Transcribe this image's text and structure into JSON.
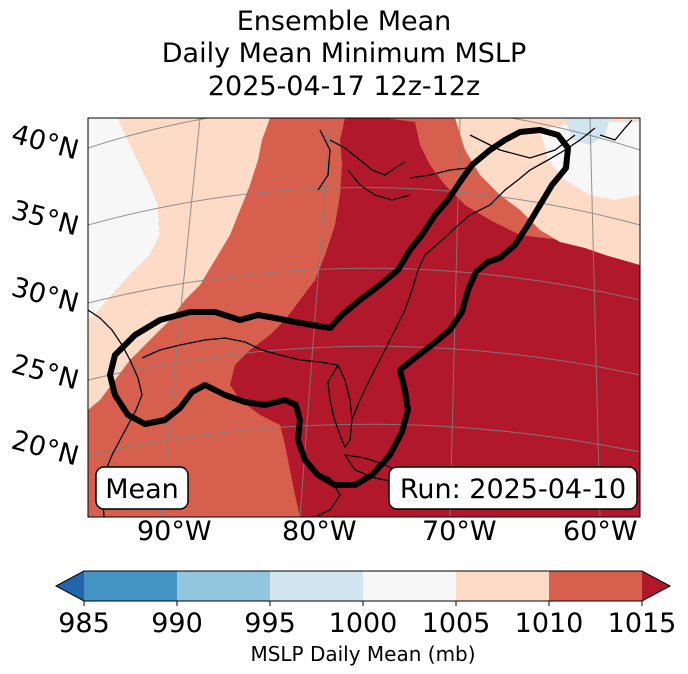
{
  "title": {
    "line1": "Ensemble Mean",
    "line2": "Daily Mean Minimum MSLP",
    "line3": "2025-04-17 12z-12z"
  },
  "map": {
    "lat_labels": [
      "40°N",
      "35°N",
      "30°N",
      "25°N",
      "20°N"
    ],
    "lon_labels": [
      "90°W",
      "80°W",
      "70°W",
      "60°W"
    ],
    "mean_box_label": "Mean",
    "run_box_label": "Run: 2025-04-10",
    "contour_color": "#000000",
    "land_outline_color": "#000000",
    "gridline_color": "#808080"
  },
  "colorbar": {
    "title": "MSLP Daily Mean (mb)",
    "ticks": [
      "985",
      "990",
      "995",
      "1000",
      "1005",
      "1010",
      "1015"
    ],
    "bins": [
      {
        "range": "<985",
        "color": "#2166ac"
      },
      {
        "range": "985-990",
        "color": "#4393c3"
      },
      {
        "range": "990-995",
        "color": "#92c5de"
      },
      {
        "range": "995-1000",
        "color": "#d1e5f0"
      },
      {
        "range": "1000-1005",
        "color": "#f7f7f7"
      },
      {
        "range": "1005-1010",
        "color": "#fddbc7"
      },
      {
        "range": "1010-1015",
        "color": "#d6604d"
      },
      {
        "range": ">1015",
        "color": "#b2182b"
      }
    ]
  }
}
